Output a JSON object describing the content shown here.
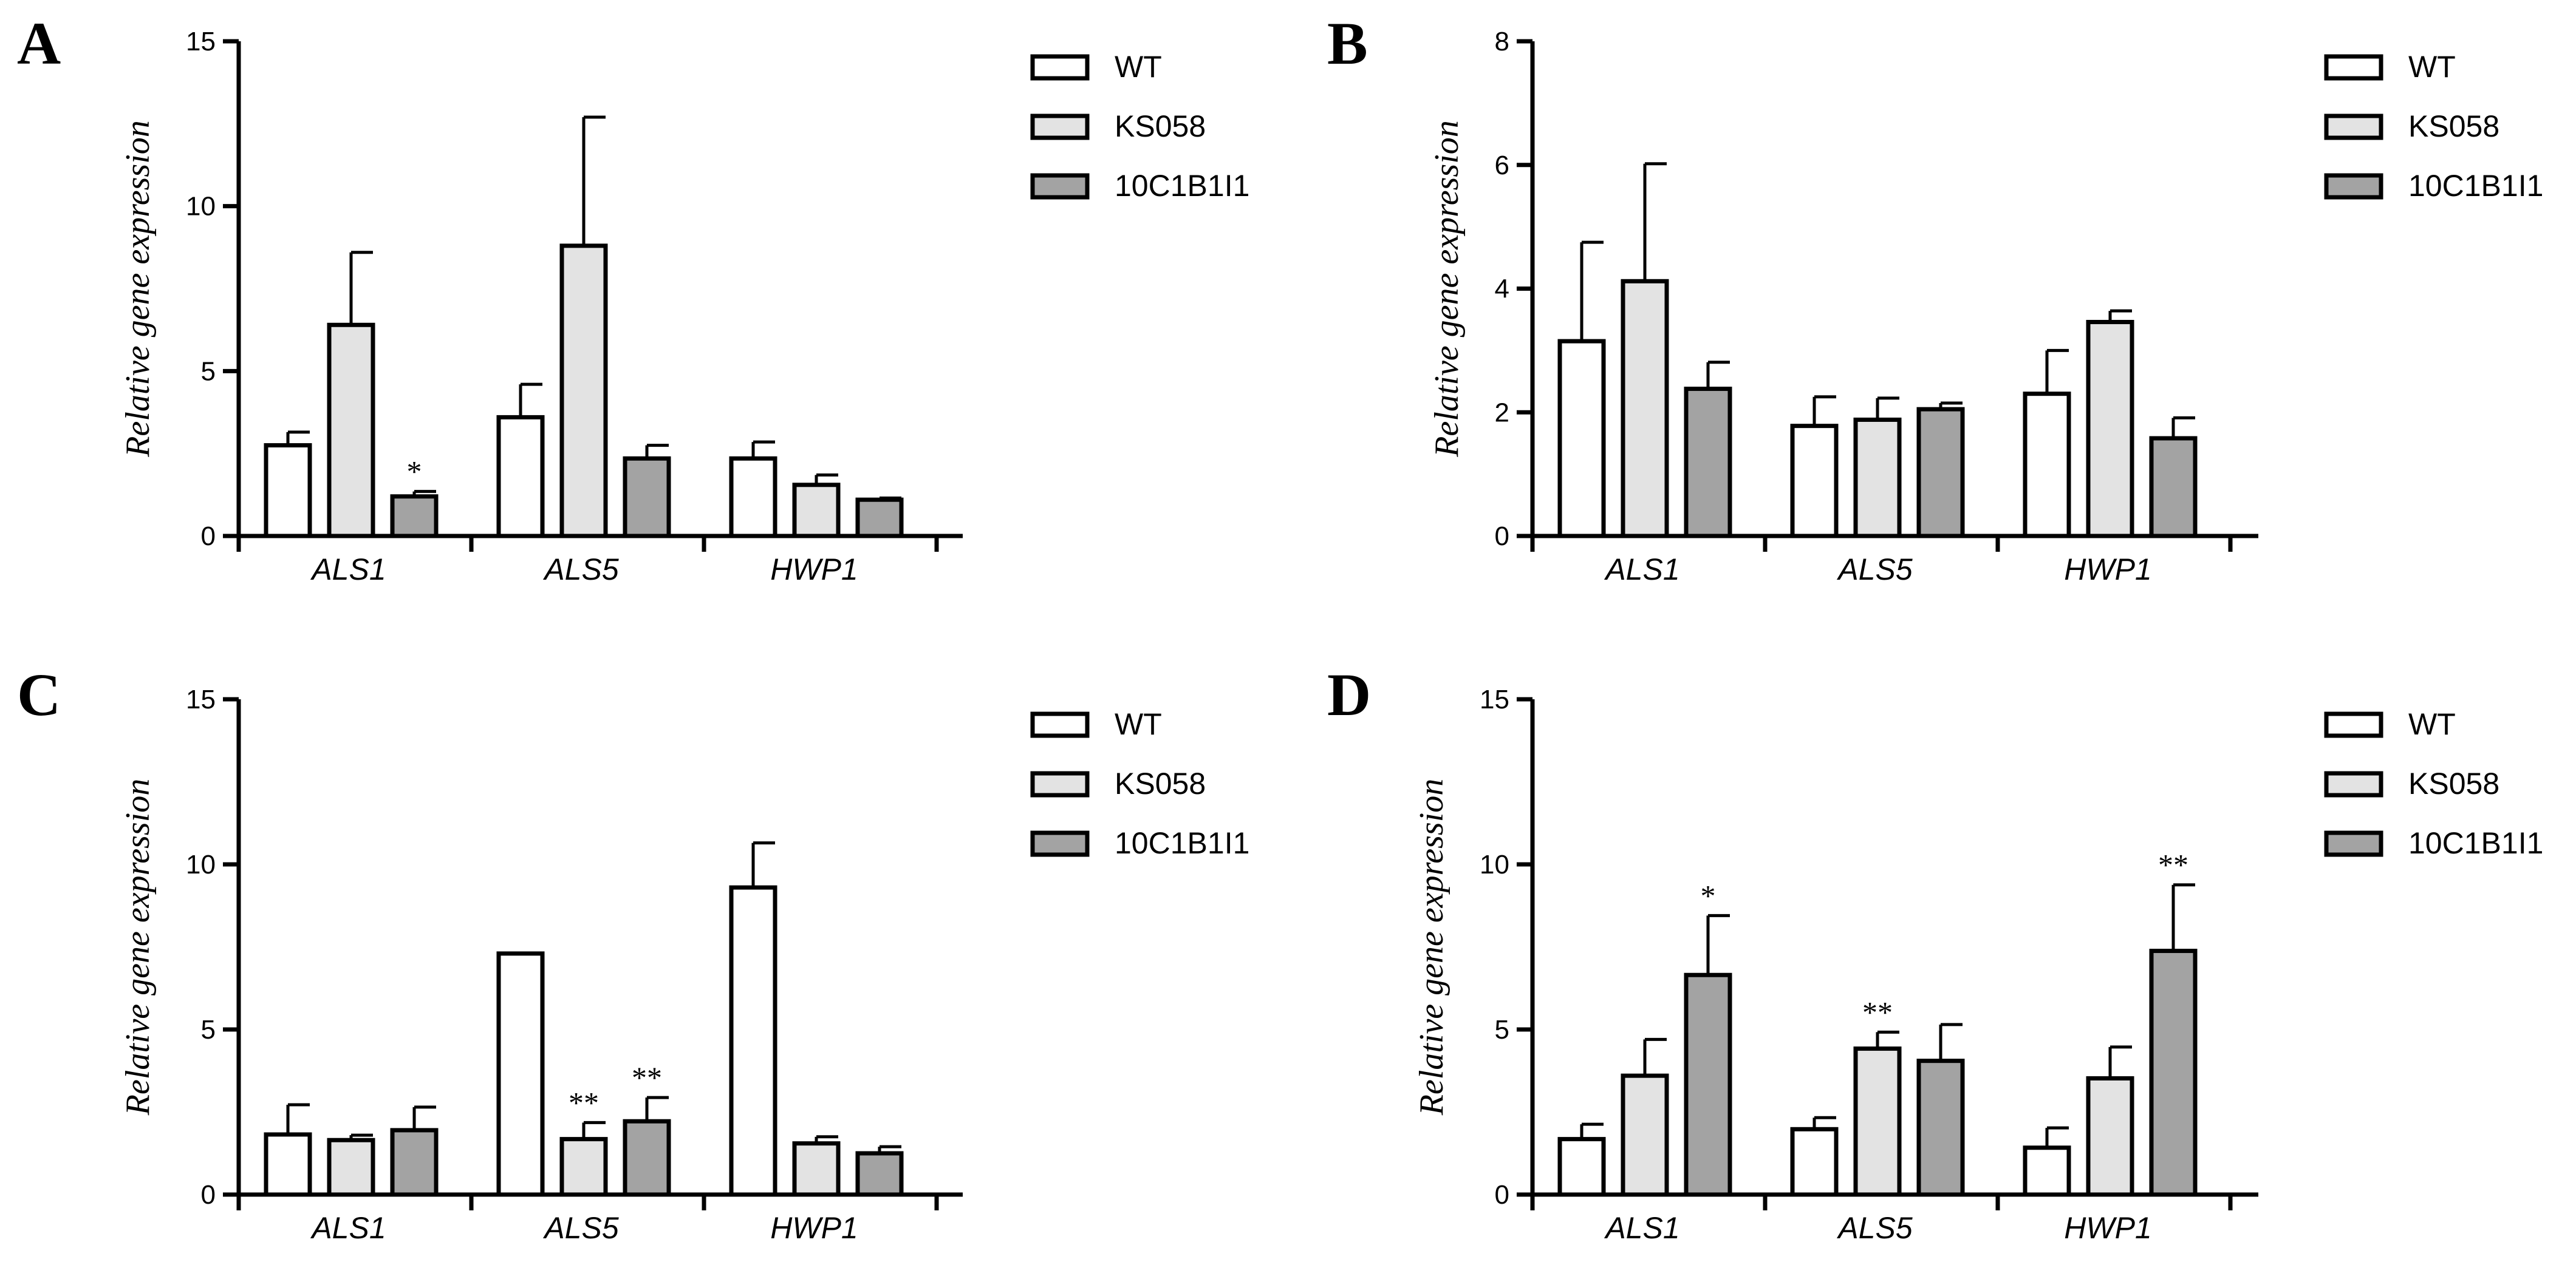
{
  "chart_data": [
    {
      "type": "bar",
      "panel": "A",
      "ylabel": "Relative gene expression",
      "ylim": [
        0,
        15
      ],
      "yticks": [
        0,
        5,
        10,
        15
      ],
      "categories": [
        "ALS1",
        "ALS5",
        "HWP1"
      ],
      "series": [
        {
          "name": "WT",
          "values": [
            2.75,
            3.6,
            2.35
          ],
          "errors": [
            0.4,
            1.0,
            0.5
          ],
          "sig": [
            "",
            "",
            ""
          ]
        },
        {
          "name": "KS058",
          "values": [
            6.4,
            8.8,
            1.55
          ],
          "errors": [
            2.2,
            3.9,
            0.3
          ],
          "sig": [
            "",
            "",
            ""
          ]
        },
        {
          "name": "10C1B1I1",
          "values": [
            1.2,
            2.35,
            1.1
          ],
          "errors": [
            0.15,
            0.4,
            0.05
          ],
          "sig": [
            "*",
            "",
            ""
          ]
        }
      ],
      "legend": [
        "WT",
        "KS058",
        "10C1B1I1"
      ]
    },
    {
      "type": "bar",
      "panel": "B",
      "ylabel": "Relative gene expression",
      "ylim": [
        0,
        8
      ],
      "yticks": [
        0,
        2,
        4,
        6,
        8
      ],
      "categories": [
        "ALS1",
        "ALS5",
        "HWP1"
      ],
      "series": [
        {
          "name": "WT",
          "values": [
            3.15,
            1.78,
            2.3
          ],
          "errors": [
            1.6,
            0.47,
            0.7
          ],
          "sig": [
            "",
            "",
            ""
          ]
        },
        {
          "name": "KS058",
          "values": [
            4.12,
            1.88,
            3.46
          ],
          "errors": [
            1.9,
            0.35,
            0.18
          ],
          "sig": [
            "",
            "",
            ""
          ]
        },
        {
          "name": "10C1B1I1",
          "values": [
            2.38,
            2.05,
            1.58
          ],
          "errors": [
            0.43,
            0.1,
            0.33
          ],
          "sig": [
            "",
            "",
            ""
          ]
        }
      ],
      "legend": [
        "WT",
        "KS058",
        "10C1B1I1"
      ]
    },
    {
      "type": "bar",
      "panel": "C",
      "ylabel": "Relative gene expression",
      "ylim": [
        0,
        15
      ],
      "yticks": [
        0,
        5,
        10,
        15
      ],
      "categories": [
        "ALS1",
        "ALS5",
        "HWP1"
      ],
      "series": [
        {
          "name": "WT",
          "values": [
            1.82,
            7.3,
            9.3
          ],
          "errors": [
            0.9,
            0.0,
            1.35
          ],
          "sig": [
            "",
            "",
            ""
          ]
        },
        {
          "name": "KS058",
          "values": [
            1.65,
            1.68,
            1.55
          ],
          "errors": [
            0.15,
            0.5,
            0.2
          ],
          "sig": [
            "",
            "**",
            ""
          ]
        },
        {
          "name": "10C1B1I1",
          "values": [
            1.95,
            2.22,
            1.25
          ],
          "errors": [
            0.7,
            0.72,
            0.2
          ],
          "sig": [
            "",
            "**",
            ""
          ]
        }
      ],
      "legend": [
        "WT",
        "KS058",
        "10C1B1I1"
      ]
    },
    {
      "type": "bar",
      "panel": "D",
      "ylabel": "Relative gene expression",
      "ylim": [
        0,
        15
      ],
      "yticks": [
        0,
        5,
        10,
        15
      ],
      "categories": [
        "ALS1",
        "ALS5",
        "HWP1"
      ],
      "series": [
        {
          "name": "WT",
          "values": [
            1.68,
            1.98,
            1.42
          ],
          "errors": [
            0.45,
            0.35,
            0.6
          ],
          "sig": [
            "",
            "",
            ""
          ]
        },
        {
          "name": "KS058",
          "values": [
            3.6,
            4.42,
            3.52
          ],
          "errors": [
            1.1,
            0.5,
            0.95
          ],
          "sig": [
            "",
            "**",
            ""
          ]
        },
        {
          "name": "10C1B1I1",
          "values": [
            6.65,
            4.05,
            7.38
          ],
          "errors": [
            1.8,
            1.1,
            2.0
          ],
          "sig": [
            "*",
            "",
            "**"
          ]
        }
      ],
      "legend": [
        "WT",
        "KS058",
        "10C1B1I1"
      ]
    }
  ],
  "colors": {
    "WT": "#ffffff",
    "KS058": "#e3e3e3",
    "10C1B1I1": "#a3a3a3",
    "stroke": "#000000"
  }
}
